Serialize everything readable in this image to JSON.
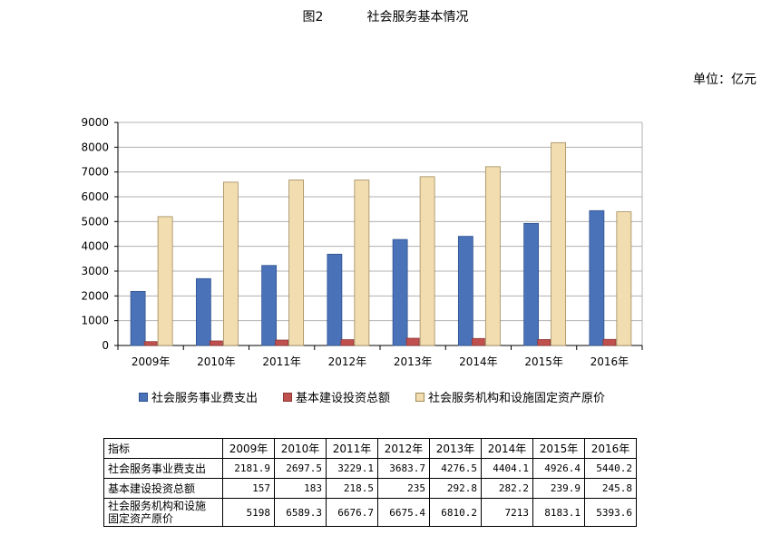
{
  "page": {
    "figure_label": "图2",
    "title": "社会服务基本情况",
    "unit": "单位：亿元"
  },
  "chart_data": {
    "type": "bar",
    "categories": [
      "2009年",
      "2010年",
      "2011年",
      "2012年",
      "2013年",
      "2014年",
      "2015年",
      "2016年"
    ],
    "series": [
      {
        "name": "社会服务事业费支出",
        "values": [
          2181.9,
          2697.5,
          3229.1,
          3683.7,
          4276.5,
          4404.1,
          4926.4,
          5440.2
        ],
        "color": "#4a72b8"
      },
      {
        "name": "基本建设投资总额",
        "values": [
          157,
          183,
          218.5,
          235,
          292.8,
          282.2,
          239.9,
          245.8
        ],
        "color": "#c0504d"
      },
      {
        "name": "社会服务机构和设施固定资产原价",
        "values": [
          5198,
          6589.3,
          6676.7,
          6675.4,
          6810.2,
          7213,
          8183.1,
          5393.6
        ],
        "color": "#f2ddb0"
      }
    ],
    "ylim": [
      0,
      9000
    ],
    "yticks": [
      0,
      1000,
      2000,
      3000,
      4000,
      5000,
      6000,
      7000,
      8000,
      9000
    ],
    "grid": true,
    "legend_position": "bottom"
  },
  "table": {
    "header_label": "指标",
    "rows": [
      {
        "label": "社会服务事业费支出",
        "values": [
          "2181.9",
          "2697.5",
          "3229.1",
          "3683.7",
          "4276.5",
          "4404.1",
          "4926.4",
          "5440.2"
        ]
      },
      {
        "label": "基本建设投资总额",
        "values": [
          "157",
          "183",
          "218.5",
          "235",
          "292.8",
          "282.2",
          "239.9",
          "245.8"
        ]
      },
      {
        "label_line1": "社会服务机构和设施",
        "label_line2": "固定资产原价",
        "values": [
          "5198",
          "6589.3",
          "6676.7",
          "6675.4",
          "6810.2",
          "7213",
          "8183.1",
          "5393.6"
        ]
      }
    ]
  }
}
